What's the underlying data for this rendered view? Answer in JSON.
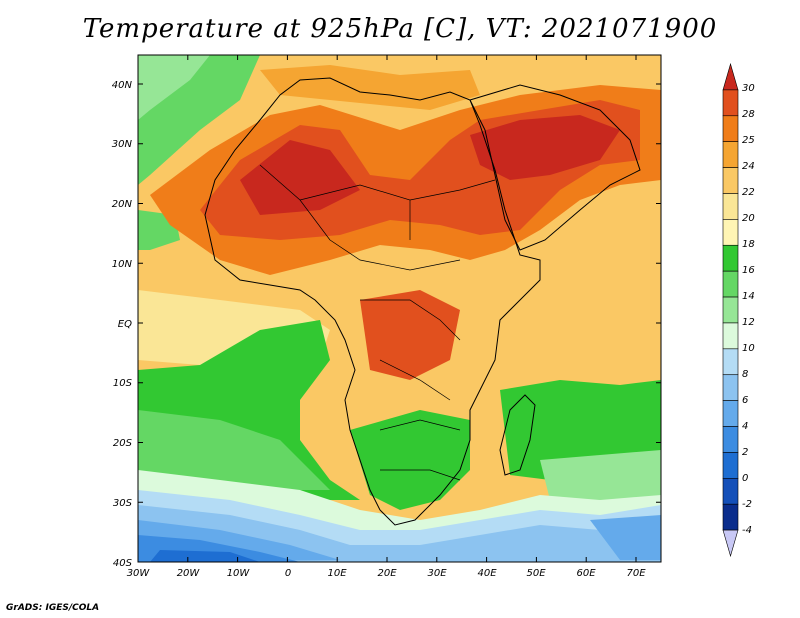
{
  "title": "Temperature at 925hPa [C], VT: 2021071900",
  "credit": "GrADS: IGES/COLA",
  "map": {
    "lon_ticks": [
      "30W",
      "20W",
      "10W",
      "0",
      "10E",
      "20E",
      "30E",
      "40E",
      "50E",
      "60E",
      "70E"
    ],
    "lat_ticks": [
      "40N",
      "30N",
      "20N",
      "10N",
      "EQ",
      "10S",
      "20S",
      "30S",
      "40S"
    ]
  },
  "colorbar": {
    "levels": [
      "30",
      "28",
      "25",
      "24",
      "22",
      "20",
      "18",
      "16",
      "14",
      "12",
      "10",
      "8",
      "6",
      "4",
      "2",
      "0",
      "-2",
      "-4"
    ],
    "colors": [
      "#c8281e",
      "#e1501e",
      "#f07d19",
      "#f5a532",
      "#fac864",
      "#fae696",
      "#fff5b4",
      "#32c832",
      "#64d764",
      "#96e696",
      "#dcfadc",
      "#b4dcf5",
      "#8cc3f0",
      "#64aaeb",
      "#3c8ce1",
      "#1e6ed2",
      "#1450b9",
      "#0a2d8c",
      "#c8c8f5"
    ]
  }
}
